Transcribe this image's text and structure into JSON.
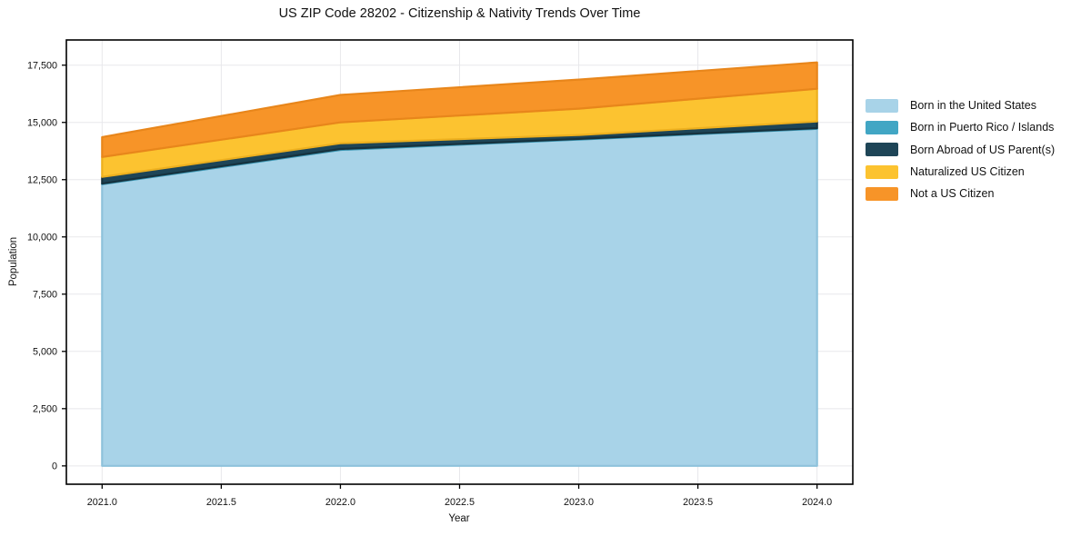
{
  "title": "US ZIP Code 28202 - Citizenship & Nativity Trends Over Time",
  "chart_data": {
    "type": "area",
    "stacked": true,
    "title": "US ZIP Code 28202 - Citizenship & Nativity Trends Over Time",
    "xlabel": "Year",
    "ylabel": "Population",
    "x": [
      2021,
      2022,
      2023,
      2024
    ],
    "series": [
      {
        "name": "Born in the United States",
        "color": "#a8d3e8",
        "edge_color": "#8ec2db",
        "values": [
          12300,
          13800,
          14250,
          14720
        ]
      },
      {
        "name": "Born in Puerto Rico / Islands",
        "color": "#41a6c4",
        "edge_color": "#3b97b4",
        "values": [
          30,
          40,
          30,
          30
        ]
      },
      {
        "name": "Born Abroad of US Parent(s)",
        "color": "#1e4557",
        "edge_color": "#16323e",
        "values": [
          290,
          250,
          170,
          290
        ]
      },
      {
        "name": "Naturalized US Citizen",
        "color": "#fcc330",
        "edge_color": "#edb01f",
        "values": [
          870,
          910,
          1150,
          1430
        ]
      },
      {
        "name": "Not a US Citizen",
        "color": "#f79428",
        "edge_color": "#e8861b",
        "values": [
          870,
          1200,
          1270,
          1150
        ]
      }
    ],
    "totals": [
      14360,
      16200,
      16870,
      17620
    ],
    "xlim": [
      2020.85,
      2024.15
    ],
    "ylim": [
      -800,
      18600
    ],
    "xticks": {
      "values": [
        2021.0,
        2021.5,
        2022.0,
        2022.5,
        2023.0,
        2023.5,
        2024.0
      ],
      "labels": [
        "2021.0",
        "2021.5",
        "2022.0",
        "2022.5",
        "2023.0",
        "2023.5",
        "2024.0"
      ]
    },
    "yticks": {
      "values": [
        0,
        2500,
        5000,
        7500,
        10000,
        12500,
        15000,
        17500
      ],
      "labels": [
        "0",
        "2,500",
        "5,000",
        "7,500",
        "10,000",
        "12,500",
        "15,000",
        "17,500"
      ]
    },
    "grid": true,
    "grid_color": "#e8e8eb",
    "axis_color": "#000000",
    "legend_position": "right"
  }
}
